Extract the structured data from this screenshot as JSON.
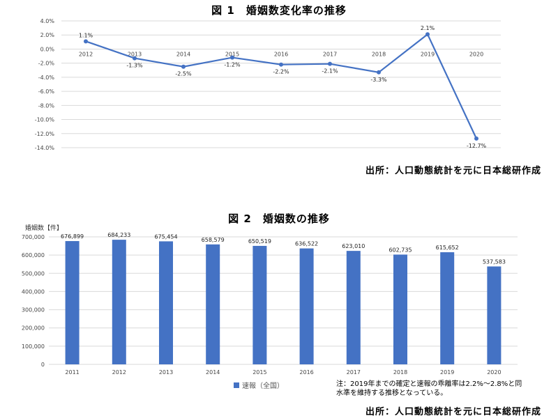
{
  "charts": {
    "chart1_title": "図 1　婚姻数変化率の推移",
    "chart1_source": "出所：人口動態統計を元に日本総研作成",
    "chart2_title": "図 2　婚姻数の推移",
    "chart2_source": "出所：人口動態統計を元に日本総研作成",
    "chart2_legend": "速報（全国）",
    "chart2_note": "注：2019年までの確定と速報の乖離率は2.2%～2.8%と同水準を維持する推移となっている。"
  },
  "chart_data": [
    {
      "type": "line",
      "title": "図 1　婚姻数変化率の推移",
      "x": [
        "2012",
        "2013",
        "2014",
        "2015",
        "2016",
        "2017",
        "2018",
        "2019",
        "2020"
      ],
      "series": [
        {
          "values": [
            1.1,
            -1.3,
            -2.5,
            -1.2,
            -2.2,
            -2.1,
            -3.3,
            2.1,
            -12.7
          ],
          "labels": [
            "1.1%",
            "-1.3%",
            "-2.5%",
            "-1.2%",
            "-2.2%",
            "-2.1%",
            "-3.3%",
            "2.1%",
            "-12.7%"
          ]
        }
      ],
      "y_ticks": [
        "4.0%",
        "2.0%",
        "0.0%",
        "-2.0%",
        "-4.0%",
        "-6.0%",
        "-8.0%",
        "-10.0%",
        "-12.0%",
        "-14.0%"
      ],
      "ylim": [
        -14,
        4
      ],
      "grid": true,
      "color": "#4472c4"
    },
    {
      "type": "bar",
      "title": "図 2　婚姻数の推移",
      "ylabel": "婚姻数【件】",
      "categories": [
        "2011",
        "2012",
        "2013",
        "2014",
        "2015",
        "2016",
        "2017",
        "2018",
        "2019",
        "2020"
      ],
      "series": [
        {
          "name": "速報（全国）",
          "values": [
            676899,
            684233,
            675454,
            658579,
            650519,
            636522,
            623010,
            602735,
            615652,
            537583
          ],
          "labels": [
            "676,899",
            "684,233",
            "675,454",
            "658,579",
            "650,519",
            "636,522",
            "623,010",
            "602,735",
            "615,652",
            "537,583"
          ]
        }
      ],
      "y_ticks": [
        "700,000",
        "600,000",
        "500,000",
        "400,000",
        "300,000",
        "200,000",
        "100,000",
        "0"
      ],
      "ylim": [
        0,
        700000
      ],
      "grid": true,
      "color": "#4472c4",
      "legend": "bottom"
    }
  ]
}
